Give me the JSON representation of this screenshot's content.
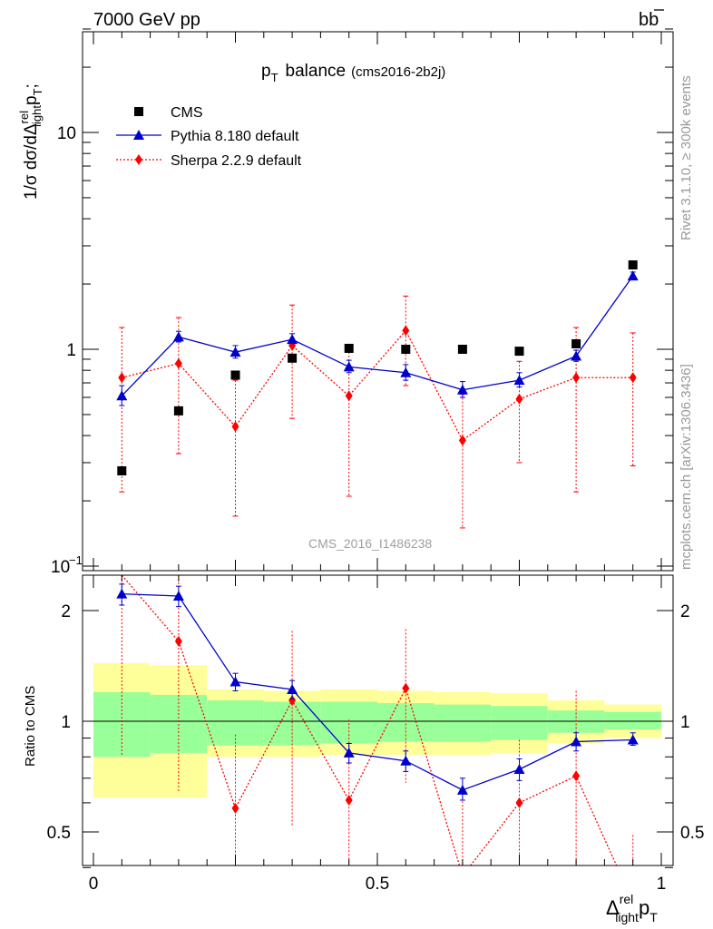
{
  "header": {
    "energy": "7000 GeV pp",
    "process": "bb",
    "side_left": "Rivet 3.1.10, ≥ 300k events",
    "side_right": "mcplots.cern.ch [arXiv:1306.3436]"
  },
  "chart_data": {
    "type": "scatter",
    "title": "p",
    "title_sub": "T",
    "title_rest": "balance",
    "title_tag": "(cms2016-2b2j)",
    "watermark": "CMS_2016_I1486238",
    "x_label": {
      "main": "Δ",
      "sup": "rel",
      "sub": "light",
      "tail": "p",
      "tail_sub": "T"
    },
    "y_label_main": "1/σ dσ/dΔ",
    "y_label_sup": "rel",
    "y_label_sub": "light",
    "y_label_tail": "p",
    "y_label_tail_sub": "T",
    "y_label_end": ";",
    "ratio_ylabel": "Ratio to CMS",
    "x_ticks": [
      "0",
      "0.5",
      "1"
    ],
    "main_y_ticks": [
      "10",
      "1",
      "10"
    ],
    "main_y_ticks_exp": [
      "",
      "",
      "−1"
    ],
    "ratio_y_ticks": [
      "2",
      "1",
      "0.5"
    ],
    "xlim": [
      0,
      1
    ],
    "main_ylim": [
      0.1,
      30
    ],
    "main_log": true,
    "ratio_ylim": [
      0.4,
      2.3
    ],
    "ratio_log": true,
    "x": [
      0.05,
      0.15,
      0.25,
      0.35,
      0.45,
      0.55,
      0.65,
      0.75,
      0.85,
      0.95
    ],
    "bin_edges": [
      0,
      0.1,
      0.2,
      0.3,
      0.4,
      0.5,
      0.6,
      0.7,
      0.8,
      0.9,
      1.0
    ],
    "series": [
      {
        "name": "CMS",
        "values": [
          0.275,
          0.52,
          0.76,
          0.91,
          1.01,
          1.0,
          1.0,
          0.98,
          1.06,
          2.45
        ],
        "color": "#000000",
        "marker": "square"
      },
      {
        "name": "Pythia 8.180 default",
        "values": [
          0.61,
          1.14,
          0.97,
          1.11,
          0.83,
          0.78,
          0.65,
          0.72,
          0.93,
          2.18
        ],
        "err_lo": [
          0.55,
          1.08,
          0.91,
          1.05,
          0.78,
          0.72,
          0.6,
          0.67,
          0.88,
          2.1
        ],
        "err_hi": [
          0.68,
          1.21,
          1.04,
          1.18,
          0.89,
          0.85,
          0.71,
          0.78,
          0.99,
          2.27
        ],
        "color": "#0000cc",
        "marker": "triangle"
      },
      {
        "name": "Sherpa 2.2.9 default",
        "values": [
          0.74,
          0.86,
          0.44,
          1.04,
          0.61,
          1.22,
          0.38,
          0.59,
          0.74,
          0.74
        ],
        "err_lo": [
          0.22,
          0.33,
          0.17,
          0.48,
          0.21,
          0.68,
          0.15,
          0.3,
          0.22,
          0.29
        ],
        "err_hi": [
          1.26,
          1.4,
          0.72,
          1.6,
          1.01,
          1.76,
          0.62,
          0.88,
          1.26,
          1.19
        ],
        "color": "#ff0000",
        "marker": "diamond"
      }
    ],
    "ratio_series": [
      {
        "name": "Pythia 8.180 default",
        "values": [
          2.22,
          2.19,
          1.28,
          1.22,
          0.82,
          0.78,
          0.65,
          0.74,
          0.88,
          0.89
        ],
        "err_lo": [
          2.07,
          2.05,
          1.21,
          1.15,
          0.77,
          0.73,
          0.61,
          0.69,
          0.83,
          0.86
        ],
        "err_hi": [
          2.36,
          2.33,
          1.35,
          1.29,
          0.87,
          0.83,
          0.7,
          0.79,
          0.93,
          0.93
        ]
      },
      {
        "name": "Sherpa 2.2.9 default",
        "values": [
          2.7,
          1.65,
          0.58,
          1.14,
          0.61,
          1.23,
          0.38,
          0.6,
          0.71,
          0.3
        ],
        "err_lo": [
          0.8,
          0.64,
          0.3,
          0.52,
          0.21,
          0.68,
          0.2,
          0.31,
          0.21,
          0.12
        ],
        "err_hi": [
          4.6,
          2.66,
          0.92,
          1.76,
          1.01,
          1.78,
          0.62,
          0.89,
          1.21,
          0.49
        ]
      }
    ],
    "band_inner": {
      "lo": [
        0.8,
        0.82,
        0.86,
        0.86,
        0.87,
        0.88,
        0.88,
        0.89,
        0.93,
        0.95
      ],
      "hi": [
        1.2,
        1.18,
        1.14,
        1.13,
        1.13,
        1.12,
        1.11,
        1.1,
        1.07,
        1.06
      ]
    },
    "band_outer": {
      "lo": [
        0.62,
        0.62,
        0.8,
        0.8,
        0.81,
        0.81,
        0.81,
        0.82,
        0.87,
        0.9
      ],
      "hi": [
        1.44,
        1.42,
        1.22,
        1.21,
        1.22,
        1.21,
        1.2,
        1.19,
        1.14,
        1.11
      ]
    },
    "colors": {
      "band_inner": "#99ff99",
      "band_outer": "#ffff99"
    }
  }
}
